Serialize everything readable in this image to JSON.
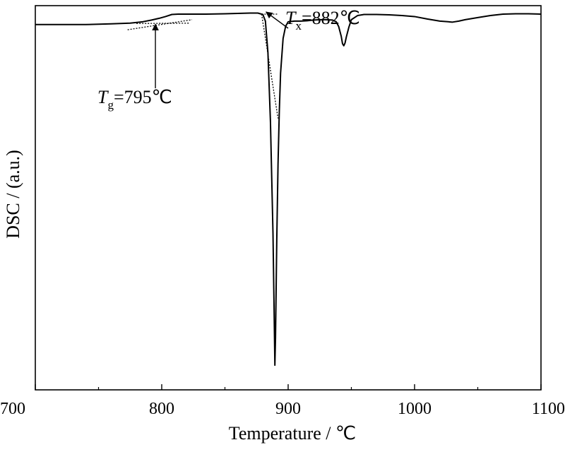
{
  "chart_data": {
    "type": "line",
    "xlabel": "Temperature / ℃",
    "ylabel": "DSC / (a.u.)",
    "xlim": [
      700,
      1100
    ],
    "ylim": [
      -100,
      3
    ],
    "xticks": [
      700,
      800,
      900,
      1000,
      1100
    ],
    "grid": false,
    "legend": "none",
    "y_tick_labels": false,
    "series": [
      {
        "x": [
          700,
          720,
          740,
          760,
          775,
          785,
          792,
          798,
          803,
          808,
          813,
          820,
          835,
          850,
          860,
          870,
          876,
          880,
          882,
          884,
          886,
          888,
          889,
          889.5,
          890,
          891,
          892,
          893,
          894,
          896,
          898,
          900,
          905,
          910,
          915,
          920,
          925,
          930,
          935,
          938,
          940,
          942,
          943,
          944,
          945,
          946,
          948,
          950,
          955,
          960,
          970,
          980,
          990,
          1000,
          1010,
          1020,
          1030,
          1035,
          1040,
          1050,
          1060,
          1070,
          1080,
          1090,
          1100
        ],
        "y": [
          0,
          0,
          0,
          0.2,
          0.4,
          0.8,
          1.3,
          1.8,
          2.3,
          2.9,
          3.0,
          3.0,
          3.0,
          3.1,
          3.2,
          3.3,
          3.3,
          2.9,
          1.0,
          -8,
          -28,
          -60,
          -85,
          -98,
          -90,
          -62,
          -40,
          -25,
          -14,
          -4,
          -0.5,
          0.8,
          1.0,
          1.0,
          1.1,
          1.3,
          1.4,
          1.4,
          1.3,
          0.8,
          -0.6,
          -3.4,
          -5.5,
          -6.1,
          -5.3,
          -3.6,
          -0.8,
          1.4,
          2.6,
          2.9,
          2.9,
          2.8,
          2.6,
          2.3,
          1.6,
          1.0,
          0.7,
          1.0,
          1.4,
          2.0,
          2.6,
          3.0,
          3.1,
          3.1,
          3.0
        ]
      }
    ],
    "annotations": [
      {
        "italic": "T",
        "sub": "g",
        "value": "=795℃",
        "x": 795,
        "y": 0.7
      },
      {
        "italic": "T",
        "sub": "x",
        "value": "=882℃",
        "x": 882,
        "y": 3.0
      }
    ],
    "tangent_lines": [
      {
        "x": [
          773,
          824
        ],
        "y": [
          -1.5,
          1.4
        ]
      },
      {
        "x": [
          780,
          822
        ],
        "y": [
          0.3,
          0.4
        ]
      },
      {
        "x": [
          879,
          892
        ],
        "y": [
          3.0,
          3.0
        ]
      },
      {
        "x": [
          879,
          892
        ],
        "y": [
          3.0,
          -27
        ]
      }
    ]
  }
}
